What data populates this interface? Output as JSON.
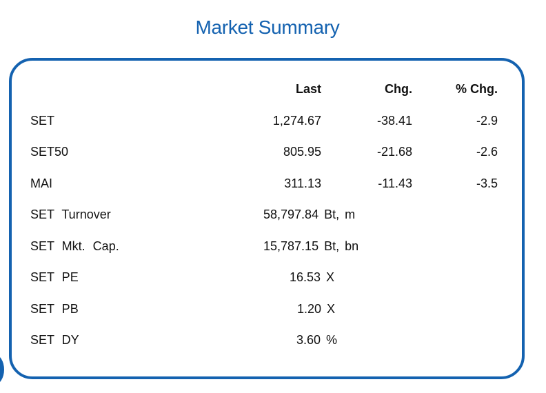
{
  "title": "Market Summary",
  "headers": {
    "last": "Last",
    "chg": "Chg.",
    "pct_chg": "% Chg."
  },
  "index_rows": [
    {
      "name": "SET",
      "last": "1,274.67",
      "chg": "-38.41",
      "pct_chg": "-2.9"
    },
    {
      "name": "SET50",
      "last": "805.95",
      "chg": "-21.68",
      "pct_chg": "-2.6"
    },
    {
      "name": "MAI",
      "last": "311.13",
      "chg": "-11.43",
      "pct_chg": "-3.5"
    }
  ],
  "stat_rows": [
    {
      "name": "SET Turnover",
      "value": "58,797.84 Bt, m"
    },
    {
      "name": "SET Mkt. Cap.",
      "value": "15,787.15 Bt, bn"
    },
    {
      "name": "SET PE",
      "value": "16.53 X"
    },
    {
      "name": "SET PB",
      "value": "1.20 X"
    },
    {
      "name": "SET DY",
      "value": "3.60 %"
    }
  ],
  "colors": {
    "accent": "#1462b0",
    "text": "#111111"
  }
}
